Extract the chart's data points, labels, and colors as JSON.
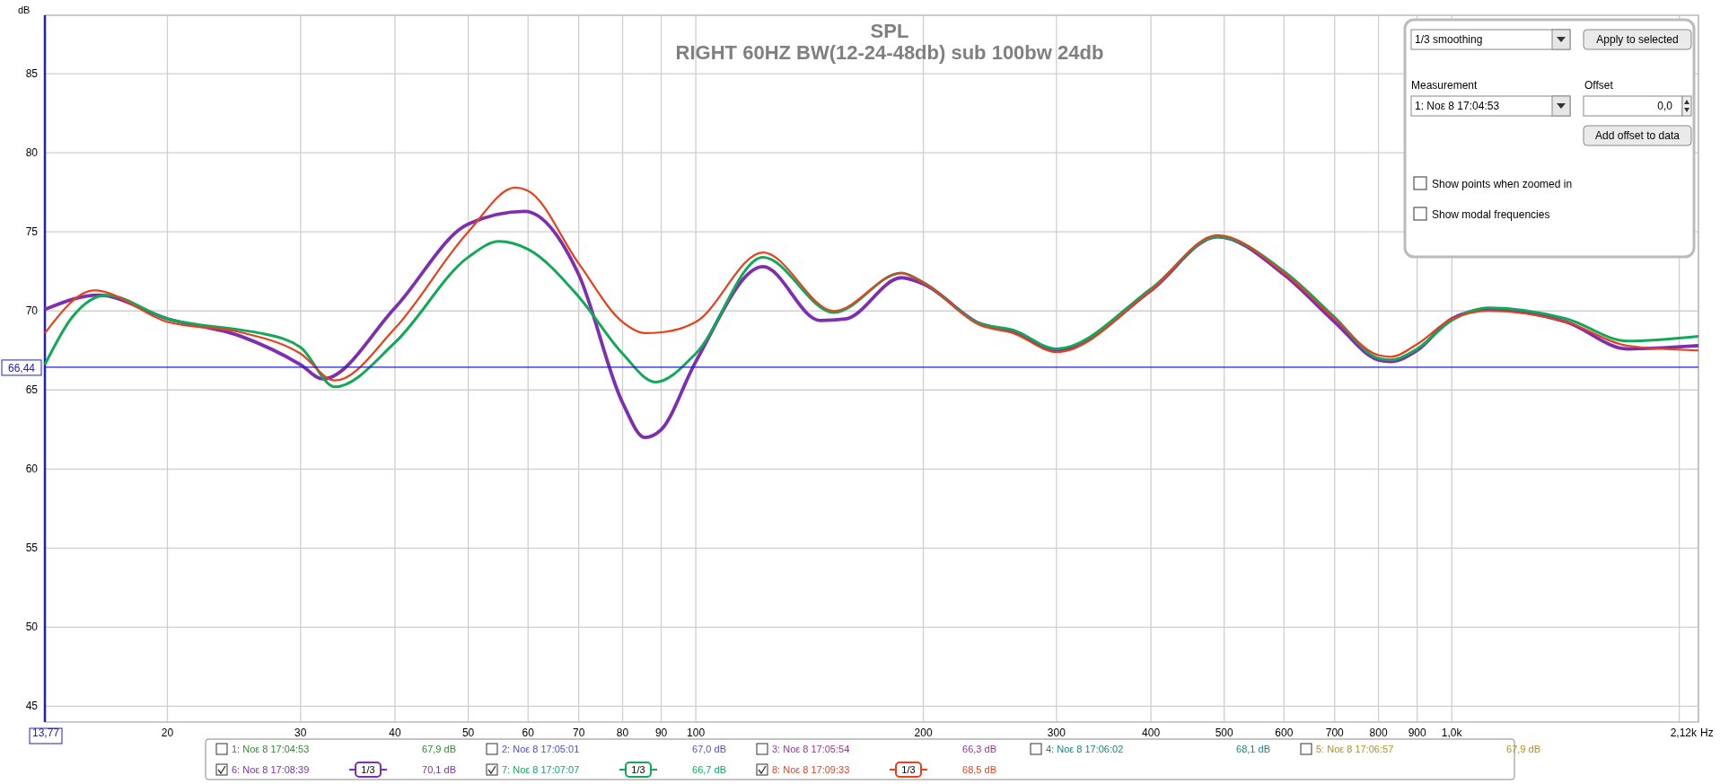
{
  "chart_data": {
    "type": "line",
    "title": "SPL",
    "subtitle": "RIGHT 60HZ BW(12-24-48db) sub 100bw 24db",
    "ylabel": "dB",
    "xlabel": "Hz",
    "log": "x",
    "grid": true,
    "legend": "bottom",
    "line_style": "solid",
    "marker": "none",
    "xlim": [
      13.77,
      2120
    ],
    "ylim": [
      44,
      88.7
    ],
    "xticks": [
      {
        "value": 13.77,
        "label": "13,77"
      },
      20,
      30,
      40,
      50,
      60,
      70,
      80,
      90,
      100,
      200,
      300,
      400,
      500,
      600,
      700,
      800,
      900,
      {
        "value": 1000,
        "label": "1,0k"
      },
      {
        "value": 2000,
        "label": null
      },
      {
        "value": 2120,
        "label": "2,12k"
      }
    ],
    "yticks": [
      45,
      50,
      55,
      60,
      65,
      70,
      75,
      80,
      85
    ],
    "ref_lines": [
      {
        "axis": "y",
        "value": 66.44,
        "label": "66,44",
        "color": "#2020c0"
      }
    ],
    "series": [
      {
        "name": "6: Νοε 8 17:08:39",
        "color": "#7d2fb0",
        "x": [
          13.77,
          16.2,
          20,
          25,
          30,
          32.1,
          40,
          50,
          59.4,
          70,
          80,
          85.6,
          90,
          100,
          122.7,
          146,
          157.8,
          187,
          200,
          237.5,
          262.8,
          300,
          400,
          490,
          600,
          700,
          800,
          830,
          900,
          1000,
          1119,
          1418,
          1708,
          2120
        ],
        "values": [
          70.1,
          71.0,
          69.5,
          68.4,
          66.6,
          65.7,
          70.2,
          75.5,
          76.3,
          72.3,
          64.2,
          62.0,
          62.5,
          66.8,
          72.8,
          69.4,
          69.5,
          72.1,
          71.7,
          69.2,
          68.7,
          67.5,
          71.3,
          74.7,
          72.3,
          69.3,
          66.9,
          66.8,
          67.5,
          69.5,
          70.1,
          69.3,
          67.6,
          67.8
        ]
      },
      {
        "name": "7: Νοε 8 17:07:07",
        "color": "#12a85a",
        "x": [
          13.77,
          14.96,
          16.6,
          20,
          25,
          26.5,
          30,
          33.3,
          40,
          50,
          54.9,
          60,
          70,
          80,
          88.4,
          100,
          122.7,
          152.3,
          187,
          200,
          237.5,
          262.8,
          300,
          400,
          490,
          600,
          700,
          800,
          830,
          900,
          1000,
          1119,
          1418,
          1708,
          2120
        ],
        "values": [
          66.6,
          69.6,
          71.0,
          69.5,
          68.8,
          68.6,
          67.7,
          65.2,
          68.0,
          73.4,
          74.4,
          73.9,
          70.9,
          67.3,
          65.5,
          67.3,
          73.4,
          69.9,
          72.4,
          71.8,
          69.2,
          68.8,
          67.6,
          71.4,
          74.7,
          72.5,
          69.6,
          67.0,
          66.9,
          67.6,
          69.4,
          70.2,
          69.5,
          68.1,
          68.4
        ]
      },
      {
        "name": "8: Νοε 8 17:09:33",
        "color": "#e8401c",
        "x": [
          13.77,
          16.0,
          20,
          25,
          30,
          33.3,
          40,
          50,
          57.7,
          60,
          70,
          80,
          85.6,
          90,
          100,
          122.7,
          152.3,
          187,
          200,
          237.5,
          262.8,
          300,
          400,
          490,
          600,
          700,
          800,
          830,
          900,
          1000,
          1119,
          1418,
          1708,
          2120
        ],
        "values": [
          68.6,
          71.3,
          69.3,
          68.65,
          67.3,
          65.6,
          68.9,
          75.0,
          77.8,
          77.6,
          73.0,
          69.3,
          68.6,
          68.65,
          69.3,
          73.7,
          70.0,
          72.4,
          71.8,
          69.1,
          68.6,
          67.4,
          71.3,
          74.8,
          72.4,
          69.5,
          67.2,
          67.1,
          67.9,
          69.5,
          70.0,
          69.3,
          67.8,
          67.5
        ]
      }
    ],
    "annotations": [
      "1/3 smoothing",
      "Apply to selected",
      "Measurement",
      "Offset",
      "1: Νοε 8 17:04:53",
      "0,0",
      "Add offset to data",
      "Show points when zoomed in",
      "Show modal frequencies",
      "1: Νοε 8 17:04:53",
      "67,9 dB",
      "2: Νοε 8 17:05:01",
      "67,0 dB",
      "3: Νοε 8 17:05:54",
      "66,3 dB",
      "4: Νοε 8 17:06:02",
      "68,1 dB",
      "5: Νοε 8 17:06:57",
      "67,9 dB",
      "1/3",
      "70,1 dB",
      "1/3",
      "66,7 dB",
      "1/3",
      "68,5 dB"
    ]
  }
}
